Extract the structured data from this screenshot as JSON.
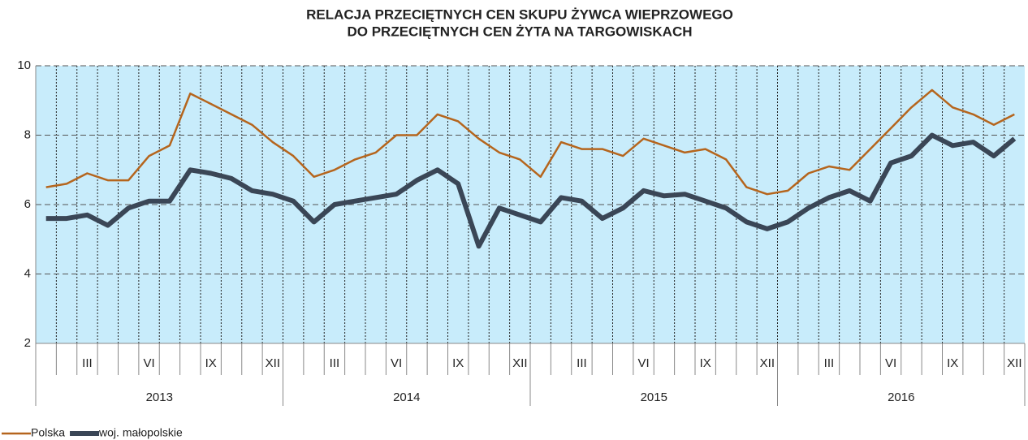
{
  "chart_data": {
    "type": "line",
    "title": [
      "RELACJA  PRZECIĘTNYCH  CEN  SKUPU  ŻYWCA  WIEPRZOWEGO",
      "DO  PRZECIĘTNYCH  CEN  ŻYTA  NA  TARGOWISKACH"
    ],
    "categories": [
      null,
      null,
      "III",
      null,
      null,
      "VI",
      null,
      null,
      "IX",
      null,
      null,
      "XII",
      null,
      null,
      "III",
      null,
      null,
      "VI",
      null,
      null,
      "IX",
      null,
      null,
      "XII",
      null,
      null,
      "III",
      null,
      null,
      "VI",
      null,
      null,
      "IX",
      null,
      null,
      "XII",
      null,
      null,
      "III",
      null,
      null,
      "VI",
      null,
      null,
      "IX",
      null,
      null,
      "XII"
    ],
    "groups": [
      "2013",
      "2014",
      "2015",
      "2016"
    ],
    "ylim": [
      2,
      10
    ],
    "yticks": [
      2,
      4,
      6,
      8,
      10
    ],
    "grid": true,
    "series": [
      {
        "name": "Polska",
        "color": "#b5651d",
        "width": 2.5,
        "values": [
          6.5,
          6.6,
          6.9,
          6.7,
          6.7,
          7.4,
          7.7,
          9.2,
          8.9,
          8.6,
          8.3,
          7.8,
          7.4,
          6.8,
          7.0,
          7.3,
          7.5,
          8.0,
          8.0,
          8.6,
          8.4,
          7.9,
          7.5,
          7.3,
          6.8,
          7.8,
          7.6,
          7.6,
          7.4,
          7.9,
          7.7,
          7.5,
          7.6,
          7.3,
          6.5,
          6.3,
          6.4,
          6.9,
          7.1,
          7.0,
          7.6,
          8.2,
          8.8,
          9.3,
          8.8,
          8.6,
          8.3,
          8.6
        ]
      },
      {
        "name": "woj. małopolskie",
        "color": "#3a4656",
        "width": 6,
        "values": [
          5.6,
          5.6,
          5.7,
          5.4,
          5.9,
          6.1,
          6.1,
          7.0,
          6.9,
          6.75,
          6.4,
          6.3,
          6.1,
          5.5,
          6.0,
          6.1,
          6.2,
          6.3,
          6.7,
          7.0,
          6.6,
          4.8,
          5.9,
          5.7,
          5.5,
          6.2,
          6.1,
          5.6,
          5.9,
          6.4,
          6.25,
          6.3,
          6.1,
          5.9,
          5.5,
          5.3,
          5.5,
          5.9,
          6.2,
          6.4,
          6.1,
          7.2,
          7.4,
          8.0,
          7.7,
          7.8,
          7.4,
          7.9
        ]
      }
    ]
  }
}
